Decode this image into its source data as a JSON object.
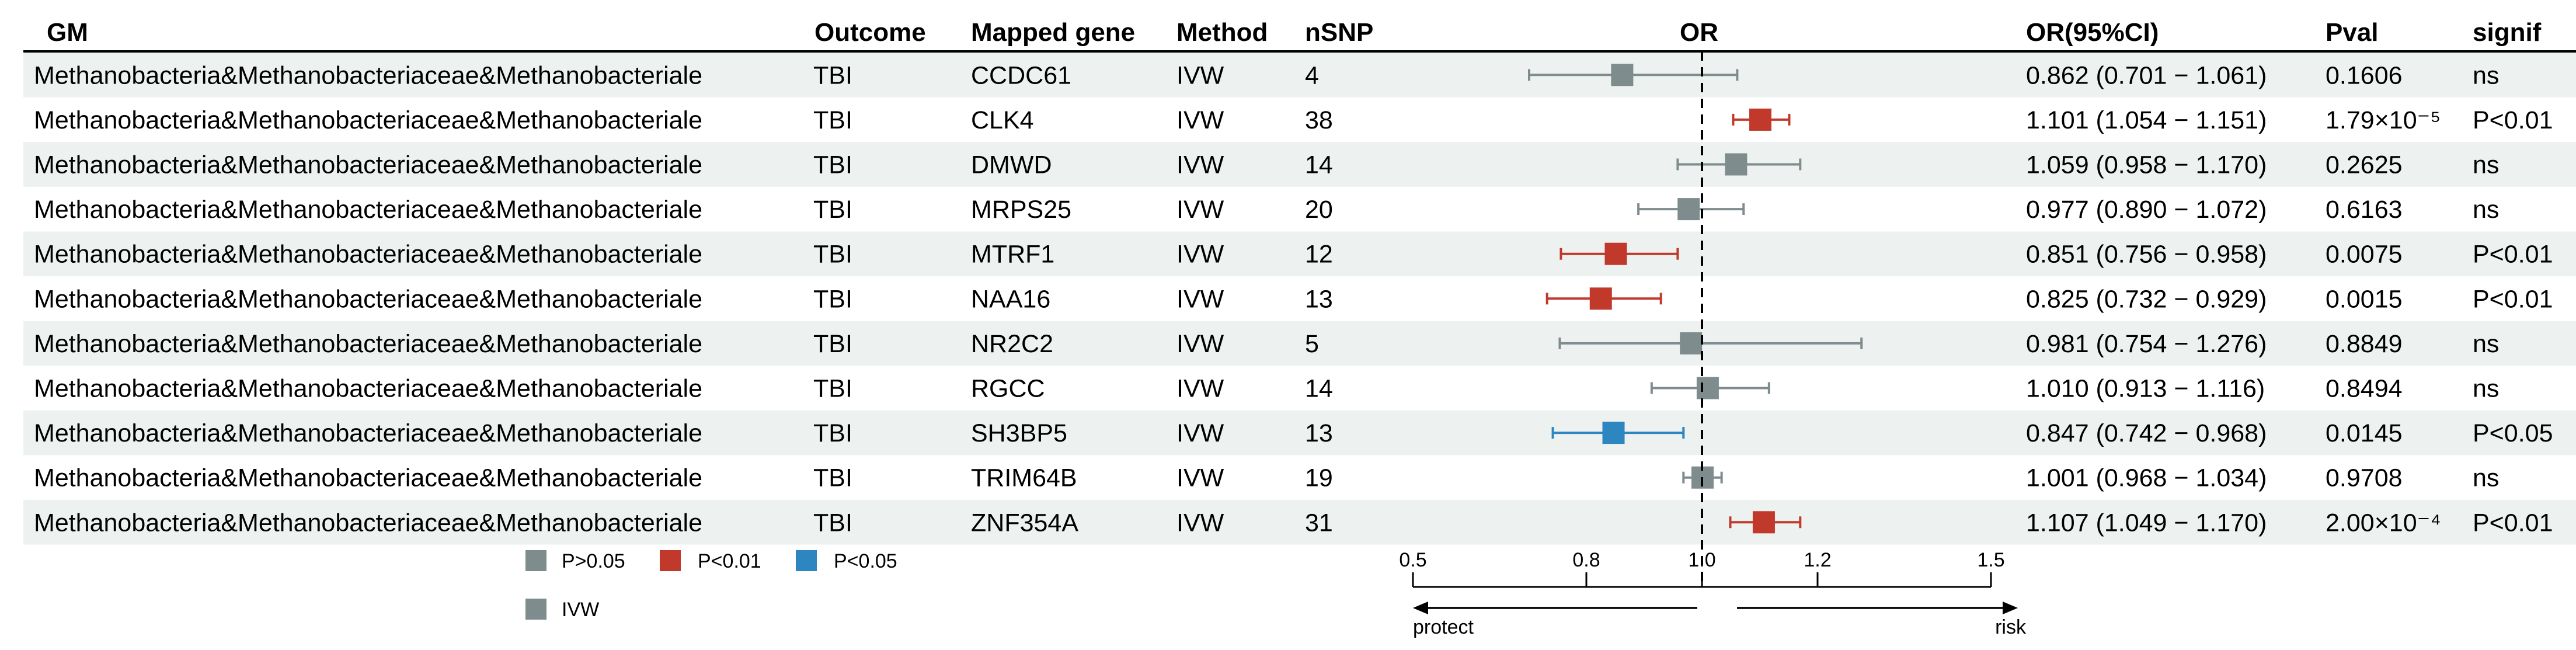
{
  "headers": {
    "gm": "GM",
    "outcome": "Outcome",
    "mapped_gene": "Mapped gene",
    "method": "Method",
    "nsnp": "nSNP",
    "or": "OR",
    "or_ci": "OR(95%CI)",
    "pval": "Pval",
    "signif": "signif"
  },
  "colors": {
    "ns": "#7f8c8d",
    "p001": "#c0392b",
    "p005": "#2e86c1",
    "stripe": "#edf2f1"
  },
  "legend": {
    "items": [
      {
        "label": "P>0.05",
        "color": "#7f8c8d"
      },
      {
        "label": "P<0.01",
        "color": "#c0392b"
      },
      {
        "label": "P<0.05",
        "color": "#2e86c1"
      }
    ],
    "shape": {
      "label": "IVW",
      "color": "#7f8c8d"
    }
  },
  "rows": [
    {
      "gm": "Methanobacteria&Methanobacteriaceae&Methanobacteriale",
      "outcome": "TBI",
      "gene": "CCDC61",
      "method": "IVW",
      "nsnp": "4",
      "or_ci": "0.862 (0.701 − 1.061)",
      "pval": "0.1606",
      "signif": "ns"
    },
    {
      "gm": "Methanobacteria&Methanobacteriaceae&Methanobacteriale",
      "outcome": "TBI",
      "gene": "CLK4",
      "method": "IVW",
      "nsnp": "38",
      "or_ci": "1.101 (1.054 − 1.151)",
      "pval": "1.79×10⁻⁵",
      "signif": "P<0.01"
    },
    {
      "gm": "Methanobacteria&Methanobacteriaceae&Methanobacteriale",
      "outcome": "TBI",
      "gene": "DMWD",
      "method": "IVW",
      "nsnp": "14",
      "or_ci": "1.059 (0.958 − 1.170)",
      "pval": "0.2625",
      "signif": "ns"
    },
    {
      "gm": "Methanobacteria&Methanobacteriaceae&Methanobacteriale",
      "outcome": "TBI",
      "gene": "MRPS25",
      "method": "IVW",
      "nsnp": "20",
      "or_ci": "0.977 (0.890 − 1.072)",
      "pval": "0.6163",
      "signif": "ns"
    },
    {
      "gm": "Methanobacteria&Methanobacteriaceae&Methanobacteriale",
      "outcome": "TBI",
      "gene": "MTRF1",
      "method": "IVW",
      "nsnp": "12",
      "or_ci": "0.851 (0.756 − 0.958)",
      "pval": "0.0075",
      "signif": "P<0.01"
    },
    {
      "gm": "Methanobacteria&Methanobacteriaceae&Methanobacteriale",
      "outcome": "TBI",
      "gene": "NAA16",
      "method": "IVW",
      "nsnp": "13",
      "or_ci": "0.825 (0.732 − 0.929)",
      "pval": "0.0015",
      "signif": "P<0.01"
    },
    {
      "gm": "Methanobacteria&Methanobacteriaceae&Methanobacteriale",
      "outcome": "TBI",
      "gene": "NR2C2",
      "method": "IVW",
      "nsnp": "5",
      "or_ci": "0.981 (0.754 − 1.276)",
      "pval": "0.8849",
      "signif": "ns"
    },
    {
      "gm": "Methanobacteria&Methanobacteriaceae&Methanobacteriale",
      "outcome": "TBI",
      "gene": "RGCC",
      "method": "IVW",
      "nsnp": "14",
      "or_ci": "1.010 (0.913 − 1.116)",
      "pval": "0.8494",
      "signif": "ns"
    },
    {
      "gm": "Methanobacteria&Methanobacteriaceae&Methanobacteriale",
      "outcome": "TBI",
      "gene": "SH3BP5",
      "method": "IVW",
      "nsnp": "13",
      "or_ci": "0.847 (0.742 − 0.968)",
      "pval": "0.0145",
      "signif": "P<0.05"
    },
    {
      "gm": "Methanobacteria&Methanobacteriaceae&Methanobacteriale",
      "outcome": "TBI",
      "gene": "TRIM64B",
      "method": "IVW",
      "nsnp": "19",
      "or_ci": "1.001 (0.968 − 1.034)",
      "pval": "0.9708",
      "signif": "ns"
    },
    {
      "gm": "Methanobacteria&Methanobacteriaceae&Methanobacteriale",
      "outcome": "TBI",
      "gene": "ZNF354A",
      "method": "IVW",
      "nsnp": "31",
      "or_ci": "1.107 (1.049 − 1.170)",
      "pval": "2.00×10⁻⁴",
      "signif": "P<0.01"
    }
  ],
  "chart_data": {
    "type": "scatter",
    "subtype": "forest",
    "title": "OR",
    "xlabel": "",
    "ylabel": "",
    "xlim": [
      0.5,
      1.5
    ],
    "xticks": [
      0.5,
      0.8,
      1.0,
      1.2,
      1.5
    ],
    "xtick_labels": [
      "0.5",
      "0.8",
      "1.0",
      "1.2",
      "1.5"
    ],
    "reference_line": 1.0,
    "direction_labels": {
      "left": "protect",
      "right": "risk"
    },
    "categories": [
      "CCDC61",
      "CLK4",
      "DMWD",
      "MRPS25",
      "MTRF1",
      "NAA16",
      "NR2C2",
      "RGCC",
      "SH3BP5",
      "TRIM64B",
      "ZNF354A"
    ],
    "or": [
      0.862,
      1.101,
      1.059,
      0.977,
      0.851,
      0.825,
      0.981,
      1.01,
      0.847,
      1.001,
      1.107
    ],
    "lower": [
      0.701,
      1.054,
      0.958,
      0.89,
      0.756,
      0.732,
      0.754,
      0.913,
      0.742,
      0.968,
      1.049
    ],
    "upper": [
      1.061,
      1.151,
      1.17,
      1.072,
      0.958,
      0.929,
      1.276,
      1.116,
      0.968,
      1.034,
      1.17
    ],
    "group": [
      "P>0.05",
      "P<0.01",
      "P>0.05",
      "P>0.05",
      "P<0.01",
      "P<0.01",
      "P>0.05",
      "P>0.05",
      "P<0.05",
      "P>0.05",
      "P<0.01"
    ]
  }
}
